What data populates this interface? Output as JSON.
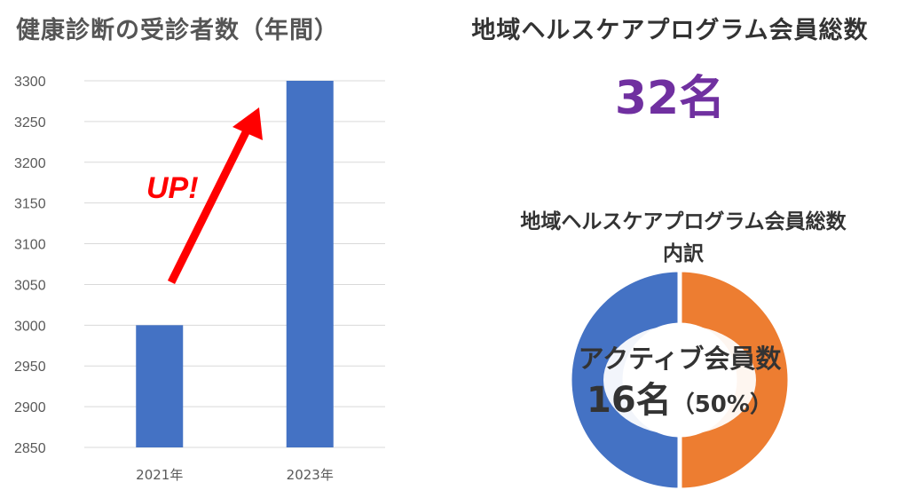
{
  "bar_chart": {
    "title": "健康診断の受診者数（年間）",
    "annotation": "UP!"
  },
  "total_members": {
    "title": "地域ヘルスケアプログラム会員総数",
    "value": "32名"
  },
  "breakdown": {
    "title_line1": "地域ヘルスケアプログラム会員総数",
    "title_line2": "内訳",
    "active_label": "アクティブ会員数",
    "active_count": "16名",
    "active_percent": "（50%）"
  },
  "chart_data": [
    {
      "type": "bar",
      "title": "健康診断の受診者数（年間）",
      "categories": [
        "2021年",
        "2023年"
      ],
      "values": [
        3000,
        3300
      ],
      "ylim": [
        2850,
        3300
      ],
      "yticks": [
        2850,
        2900,
        2950,
        3000,
        3050,
        3100,
        3150,
        3200,
        3250,
        3300
      ],
      "grid": true,
      "color": "#4472c4"
    },
    {
      "type": "pie",
      "title": "地域ヘルスケアプログラム会員総数 内訳",
      "values": [
        50,
        50
      ],
      "colors": [
        "#ed7d31",
        "#4472c4"
      ]
    }
  ]
}
